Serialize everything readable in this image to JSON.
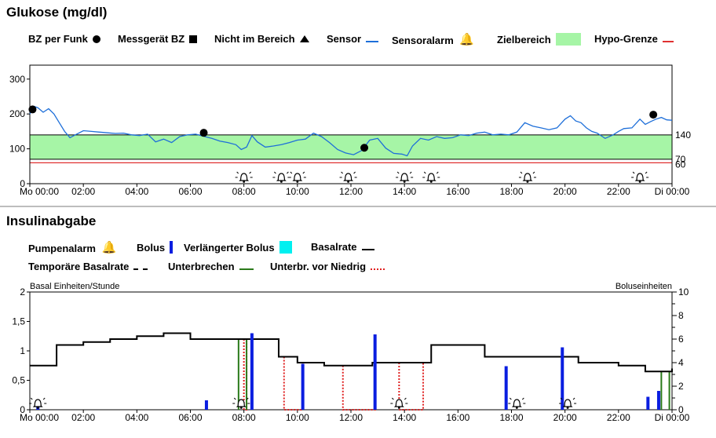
{
  "glucose": {
    "title": "Glukose (mg/dl)",
    "legend": {
      "bz_funk": "BZ per Funk",
      "messgeraet": "Messgerät BZ",
      "nicht_bereich": "Nicht im Bereich",
      "sensor": "Sensor",
      "sensoralarm": "Sensoralarm",
      "zielbereich": "Zielbereich",
      "hypo": "Hypo-Grenze"
    },
    "y_ticks": [
      "0",
      "100",
      "200",
      "300"
    ],
    "right_labels": [
      "140",
      "70",
      "60"
    ],
    "x_ticks": [
      "Mo 00:00",
      "02:00",
      "04:00",
      "06:00",
      "08:00",
      "10:00",
      "12:00",
      "14:00",
      "16:00",
      "18:00",
      "20:00",
      "22:00",
      "Di 00:00"
    ]
  },
  "insulin": {
    "title": "Insulinabgabe",
    "legend": {
      "pumpenalarm": "Pumpenalarm",
      "bolus": "Bolus",
      "verl_bolus": "Verlängerter Bolus",
      "basalrate": "Basalrate",
      "temp_basal": "Temporäre Basalrate",
      "unterbrechen": "Unterbrechen",
      "unterbr_niedrig": "Unterbr. vor Niedrig"
    },
    "left_axis_label": "Basal Einheiten/Stunde",
    "right_axis_label": "Boluseinheiten",
    "y_ticks_left": [
      "0",
      "0,5",
      "1",
      "1,5",
      "2"
    ],
    "y_ticks_right": [
      "0",
      "2",
      "4",
      "6",
      "8",
      "10"
    ],
    "x_ticks": [
      "Mo 00:00",
      "02:00",
      "04:00",
      "06:00",
      "08:00",
      "10:00",
      "12:00",
      "14:00",
      "16:00",
      "18:00",
      "20:00",
      "22:00",
      "Di 00:00"
    ]
  },
  "colors": {
    "sensor": "#1e6fd9",
    "target": "#a6f5a6",
    "hypo": "#e03030",
    "bolus": "#0a1ee0",
    "ext_bolus": "#00f0f0",
    "basal": "#000000",
    "suspend": "#2a7a1a",
    "suspend_low": "#e02020"
  },
  "chart_data": [
    {
      "type": "line",
      "title": "Glukose (mg/dl)",
      "xlabel": "",
      "ylabel": "",
      "x_unit": "hours",
      "xlim": [
        0,
        24
      ],
      "ylim": [
        0,
        340
      ],
      "target_range": [
        70,
        140
      ],
      "hypo_limit": 60,
      "series": [
        {
          "name": "Sensor",
          "x": [
            0,
            0.15,
            0.3,
            0.5,
            0.7,
            0.9,
            1.1,
            1.3,
            1.5,
            1.7,
            2.0,
            2.3,
            2.6,
            2.9,
            3.2,
            3.5,
            3.8,
            4.1,
            4.4,
            4.7,
            5.0,
            5.3,
            5.6,
            5.9,
            6.2,
            6.5,
            6.8,
            7.1,
            7.4,
            7.7,
            7.9,
            8.1,
            8.3,
            8.5,
            8.8,
            9.1,
            9.4,
            9.7,
            10.0,
            10.3,
            10.6,
            10.9,
            11.2,
            11.5,
            11.8,
            12.1,
            12.4,
            12.7,
            13.0,
            13.3,
            13.6,
            13.9,
            14.1,
            14.3,
            14.6,
            14.9,
            15.2,
            15.5,
            15.8,
            16.1,
            16.4,
            16.7,
            17.0,
            17.3,
            17.6,
            17.9,
            18.2,
            18.5,
            18.8,
            19.1,
            19.4,
            19.7,
            20.0,
            20.2,
            20.4,
            20.6,
            20.8,
            21.0,
            21.2,
            21.5,
            21.8,
            22.0,
            22.2,
            22.5,
            22.8,
            23.0,
            23.2,
            23.4,
            23.6,
            23.8,
            24.0
          ],
          "y": [
            200,
            222,
            218,
            205,
            215,
            200,
            175,
            150,
            132,
            140,
            152,
            150,
            148,
            146,
            144,
            145,
            140,
            138,
            142,
            120,
            128,
            118,
            135,
            140,
            142,
            136,
            130,
            122,
            118,
            112,
            98,
            105,
            138,
            120,
            105,
            108,
            112,
            118,
            125,
            128,
            145,
            135,
            118,
            98,
            88,
            83,
            95,
            125,
            130,
            102,
            87,
            85,
            80,
            108,
            130,
            125,
            135,
            130,
            132,
            140,
            138,
            145,
            148,
            140,
            142,
            140,
            148,
            175,
            165,
            160,
            155,
            160,
            185,
            195,
            180,
            175,
            160,
            150,
            145,
            130,
            140,
            150,
            158,
            160,
            185,
            170,
            178,
            185,
            190,
            183,
            182
          ]
        },
        {
          "name": "BZ per Funk",
          "x": [
            0.1,
            6.5,
            12.5,
            23.3
          ],
          "y": [
            213,
            146,
            103,
            198
          ]
        }
      ],
      "alarms_x": [
        8.0,
        9.4,
        10.0,
        11.9,
        14.0,
        15.0,
        18.6,
        22.8
      ]
    },
    {
      "type": "line",
      "title": "Insulinabgabe",
      "xlabel": "",
      "ylabel": "Basal Einheiten/Stunde",
      "ylabel_right": "Boluseinheiten",
      "x_unit": "hours",
      "xlim": [
        0,
        24
      ],
      "ylim": [
        0,
        2
      ],
      "ylim_right": [
        0,
        10
      ],
      "series": [
        {
          "name": "Basalrate",
          "step_x": [
            0,
            1.0,
            2.0,
            3.0,
            4.0,
            5.0,
            6.0,
            7.9,
            9.3,
            10.0,
            11.0,
            12.0,
            12.8,
            13.8,
            15.0,
            17.0,
            20.5,
            21.0,
            22.0,
            23.0,
            24.0
          ],
          "step_y": [
            0.75,
            1.1,
            1.15,
            1.2,
            1.25,
            1.3,
            1.2,
            1.2,
            0.9,
            0.8,
            0.75,
            0.75,
            0.8,
            0.8,
            1.1,
            0.9,
            0.8,
            0.8,
            0.75,
            0.65,
            0.7
          ]
        },
        {
          "name": "Unterbrechen",
          "segments": [
            [
              7.8,
              8.1
            ],
            [
              23.6,
              23.9
            ]
          ]
        },
        {
          "name": "Unterbr. vor Niedrig",
          "segments": [
            [
              8.0,
              8.1
            ],
            [
              9.5,
              10.2
            ],
            [
              11.7,
              12.9
            ],
            [
              13.8,
              14.7
            ]
          ]
        },
        {
          "name": "Bolus",
          "x": [
            0.3,
            6.6,
            8.3,
            10.2,
            12.9,
            17.8,
            19.9,
            23.1,
            23.5
          ],
          "y": [
            0.8,
            0.8,
            6.5,
            3.9,
            6.4,
            3.7,
            5.3,
            1.1,
            1.6
          ]
        }
      ],
      "alarms_x": [
        0.3,
        7.9,
        13.8,
        18.2,
        20.1
      ]
    }
  ]
}
